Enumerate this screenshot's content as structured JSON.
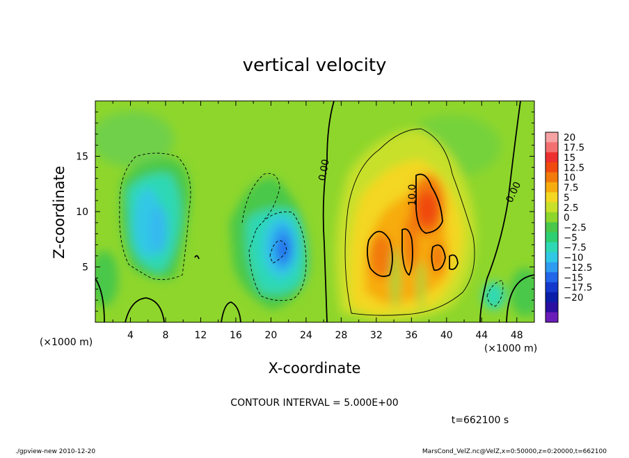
{
  "chart_data": {
    "type": "heatmap",
    "title": "vertical velocity",
    "xlabel": "X-coordinate",
    "ylabel": "Z-coordinate",
    "x_unit": "(×1000 m)",
    "y_unit": "(×1000 m)",
    "xlim": [
      0,
      50
    ],
    "ylim": [
      0,
      20
    ],
    "x_ticks": [
      "4",
      "8",
      "12",
      "16",
      "20",
      "24",
      "28",
      "32",
      "36",
      "40",
      "44",
      "48"
    ],
    "y_ticks": [
      "5",
      "10",
      "15"
    ],
    "contour_labels": [
      "0.00",
      "0.00",
      "10.0"
    ],
    "contour_interval_text": "CONTOUR INTERVAL = 5.000E+00",
    "time_text": "t=662100 s",
    "colorbar": {
      "labels": [
        "20",
        "17.5",
        "15",
        "12.5",
        "10",
        "7.5",
        "5",
        "2.5",
        "0",
        "−2.5",
        "−5",
        "−7.5",
        "−10",
        "−12.5",
        "−15",
        "−17.5",
        "−20"
      ],
      "colors": [
        "#f7a3a3",
        "#f47070",
        "#ee2f2f",
        "#f04a10",
        "#f27a0a",
        "#f7ac0e",
        "#f4d722",
        "#c8e02a",
        "#8ed62c",
        "#49c84a",
        "#2ecf72",
        "#2fd8b4",
        "#31c8e6",
        "#2e9cf0",
        "#2266ea",
        "#1437cc",
        "#0a1ea8",
        "#2a0fa0",
        "#6a1cb8"
      ]
    },
    "footer_left": "./gpview-new   2010-12-20",
    "footer_right": "MarsCond_VelZ.nc@VelZ,x=0:50000,z=0:20000,t=662100"
  }
}
